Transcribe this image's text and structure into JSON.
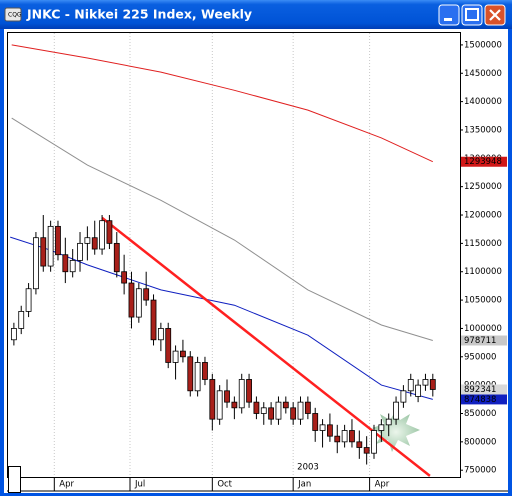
{
  "chart_data": {
    "type": "candlestick",
    "title": "JNKC - Nikkei 225 Index, Weekly",
    "xlim": [
      -0.8,
      60.7
    ],
    "xticks": [
      {
        "value": 5.5,
        "label": "Apr"
      },
      {
        "value": 15.8,
        "label": "Jul"
      },
      {
        "value": 27,
        "label": "Oct"
      },
      {
        "value": 38,
        "label": "Jan"
      },
      {
        "value": 48.4,
        "label": "Apr"
      }
    ],
    "year_label": "2003",
    "ylim": [
      738000,
      1521000
    ],
    "yticks": [
      750000,
      800000,
      850000,
      900000,
      950000,
      1000000,
      1050000,
      1100000,
      1150000,
      1200000,
      1250000,
      1300000,
      1350000,
      1400000,
      1450000,
      1500000
    ],
    "grid": "x",
    "up_color": "#ffffff",
    "down_color": "#a8201a",
    "ohlc": [
      [
        980000,
        1010000,
        970000,
        1000000
      ],
      [
        1000000,
        1040000,
        990000,
        1030000
      ],
      [
        1030000,
        1080000,
        1020000,
        1070000
      ],
      [
        1070000,
        1170000,
        1060000,
        1160000
      ],
      [
        1160000,
        1200000,
        1100000,
        1110000
      ],
      [
        1110000,
        1190000,
        1100000,
        1180000
      ],
      [
        1180000,
        1190000,
        1120000,
        1130000
      ],
      [
        1130000,
        1160000,
        1080000,
        1100000
      ],
      [
        1100000,
        1140000,
        1090000,
        1120000
      ],
      [
        1120000,
        1170000,
        1100000,
        1150000
      ],
      [
        1150000,
        1180000,
        1120000,
        1160000
      ],
      [
        1160000,
        1190000,
        1130000,
        1140000
      ],
      [
        1140000,
        1200000,
        1130000,
        1190000
      ],
      [
        1190000,
        1200000,
        1140000,
        1150000
      ],
      [
        1150000,
        1170000,
        1090000,
        1100000
      ],
      [
        1100000,
        1130000,
        1060000,
        1080000
      ],
      [
        1080000,
        1100000,
        1000000,
        1020000
      ],
      [
        1020000,
        1080000,
        1010000,
        1070000
      ],
      [
        1070000,
        1100000,
        1040000,
        1050000
      ],
      [
        1050000,
        1060000,
        970000,
        980000
      ],
      [
        980000,
        1010000,
        960000,
        1000000
      ],
      [
        1000000,
        1010000,
        930000,
        940000
      ],
      [
        940000,
        970000,
        910000,
        960000
      ],
      [
        960000,
        980000,
        940000,
        950000
      ],
      [
        950000,
        960000,
        880000,
        890000
      ],
      [
        890000,
        950000,
        880000,
        940000
      ],
      [
        940000,
        950000,
        900000,
        910000
      ],
      [
        910000,
        920000,
        820000,
        840000
      ],
      [
        840000,
        900000,
        830000,
        890000
      ],
      [
        890000,
        910000,
        860000,
        870000
      ],
      [
        870000,
        880000,
        840000,
        860000
      ],
      [
        860000,
        920000,
        850000,
        910000
      ],
      [
        910000,
        920000,
        860000,
        870000
      ],
      [
        870000,
        880000,
        840000,
        850000
      ],
      [
        850000,
        870000,
        830000,
        860000
      ],
      [
        860000,
        870000,
        830000,
        840000
      ],
      [
        840000,
        880000,
        830000,
        870000
      ],
      [
        870000,
        880000,
        850000,
        860000
      ],
      [
        860000,
        870000,
        830000,
        840000
      ],
      [
        840000,
        880000,
        830000,
        870000
      ],
      [
        870000,
        880000,
        840000,
        850000
      ],
      [
        850000,
        860000,
        800000,
        820000
      ],
      [
        820000,
        840000,
        790000,
        830000
      ],
      [
        830000,
        850000,
        800000,
        810000
      ],
      [
        810000,
        830000,
        780000,
        800000
      ],
      [
        800000,
        830000,
        790000,
        820000
      ],
      [
        820000,
        840000,
        790000,
        800000
      ],
      [
        800000,
        820000,
        770000,
        790000
      ],
      [
        790000,
        810000,
        760000,
        780000
      ],
      [
        780000,
        830000,
        770000,
        820000
      ],
      [
        820000,
        840000,
        800000,
        830000
      ],
      [
        830000,
        850000,
        810000,
        840000
      ],
      [
        840000,
        880000,
        830000,
        870000
      ],
      [
        870000,
        900000,
        860000,
        890000
      ],
      [
        890000,
        920000,
        880000,
        910000
      ],
      [
        880000,
        910000,
        870000,
        900000
      ],
      [
        900000,
        920000,
        890000,
        910000
      ],
      [
        910000,
        920000,
        880000,
        892341
      ]
    ],
    "series": [
      {
        "color": "#e02020",
        "label_bg": "#d01818",
        "label_fg": "#ffffff",
        "x": [
          -0.3,
          10,
          20,
          30,
          40,
          50,
          57
        ],
        "values": [
          1500000,
          1477000,
          1452000,
          1420000,
          1385000,
          1336000,
          1293948
        ]
      },
      {
        "color": "#909090",
        "label_bg": "#c8c8c8",
        "label_fg": "#000000",
        "x": [
          -0.3,
          10,
          20,
          30,
          40,
          50,
          57
        ],
        "values": [
          1371000,
          1288000,
          1226000,
          1156000,
          1068000,
          1006000,
          978711
        ]
      },
      {
        "color": "#1020c0",
        "label_bg": "#1020c0",
        "label_fg": "#ffffff",
        "x": [
          -0.5,
          5,
          10,
          20,
          30,
          40,
          50,
          57
        ],
        "values": [
          1161000,
          1138000,
          1112000,
          1068000,
          1041000,
          988000,
          900000,
          874838
        ]
      }
    ],
    "trendline": {
      "color": "#ff2020",
      "x": [
        12,
        56.6
      ],
      "values": [
        1195000,
        740000
      ]
    }
  }
}
